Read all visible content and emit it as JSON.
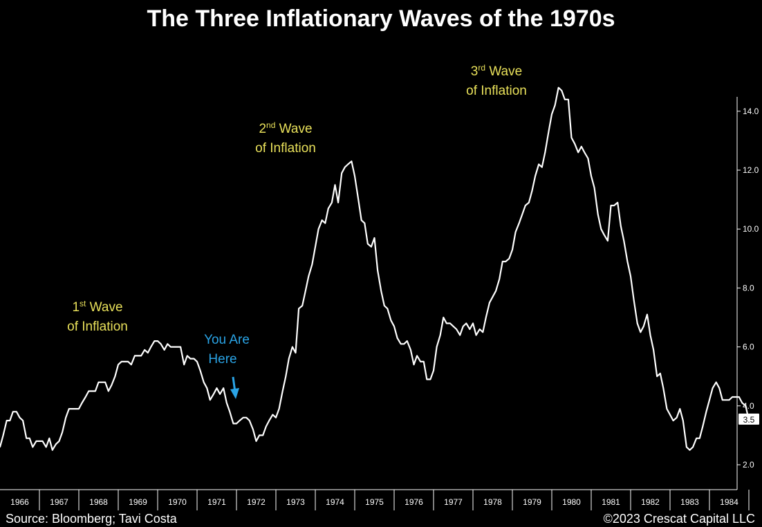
{
  "chart_data": {
    "type": "line",
    "title": "The Three Inflationary Waves of the 1970s",
    "source": "Source: Bloomberg; Tavi Costa",
    "copyright": "©2023 Crescat Capital LLC",
    "x_ticks": [
      "1966",
      "1967",
      "1968",
      "1969",
      "1970",
      "1971",
      "1972",
      "1973",
      "1974",
      "1975",
      "1976",
      "1977",
      "1978",
      "1979",
      "1980",
      "1981",
      "1982",
      "1983",
      "1984"
    ],
    "y_ticks": [
      "2.0",
      "4.0",
      "6.0",
      "8.0",
      "10.0",
      "12.0",
      "14.0"
    ],
    "ylim": [
      1.2,
      15.6
    ],
    "xlim": [
      1966.0,
      1985.05
    ],
    "last_value_label": "3.5",
    "colors": {
      "background": "#000000",
      "line": "#ffffff",
      "annotation": "#e8e05a",
      "highlight": "#2aa4e6",
      "text": "#ffffff"
    },
    "annotations": [
      {
        "id": "wave1",
        "lines": [
          "1st Wave",
          "of Inflation"
        ],
        "sup": "st",
        "base": "1"
      },
      {
        "id": "wave2",
        "lines": [
          "2nd Wave",
          "of Inflation"
        ],
        "sup": "nd",
        "base": "2"
      },
      {
        "id": "wave3",
        "lines": [
          "3rd Wave",
          "of Inflation"
        ],
        "sup": "rd",
        "base": "3"
      }
    ],
    "you_are_here": [
      "You Are",
      "Here"
    ],
    "series": [
      {
        "values": [
          [
            1966.0,
            2.6
          ],
          [
            1966.08,
            3.0
          ],
          [
            1966.17,
            3.5
          ],
          [
            1966.25,
            3.5
          ],
          [
            1966.33,
            3.8
          ],
          [
            1966.42,
            3.8
          ],
          [
            1966.5,
            3.6
          ],
          [
            1966.58,
            3.5
          ],
          [
            1966.67,
            2.9
          ],
          [
            1966.75,
            2.9
          ],
          [
            1966.83,
            2.6
          ],
          [
            1966.92,
            2.8
          ],
          [
            1967.0,
            2.8
          ],
          [
            1967.08,
            2.8
          ],
          [
            1967.17,
            2.6
          ],
          [
            1967.25,
            2.9
          ],
          [
            1967.33,
            2.5
          ],
          [
            1967.42,
            2.7
          ],
          [
            1967.5,
            2.8
          ],
          [
            1967.58,
            3.1
          ],
          [
            1967.67,
            3.6
          ],
          [
            1967.75,
            3.9
          ],
          [
            1967.83,
            3.9
          ],
          [
            1967.92,
            3.9
          ],
          [
            1968.0,
            3.9
          ],
          [
            1968.08,
            4.1
          ],
          [
            1968.17,
            4.3
          ],
          [
            1968.25,
            4.5
          ],
          [
            1968.33,
            4.5
          ],
          [
            1968.42,
            4.5
          ],
          [
            1968.5,
            4.8
          ],
          [
            1968.58,
            4.8
          ],
          [
            1968.67,
            4.8
          ],
          [
            1968.75,
            4.5
          ],
          [
            1968.83,
            4.7
          ],
          [
            1968.92,
            5.0
          ],
          [
            1969.0,
            5.4
          ],
          [
            1969.08,
            5.5
          ],
          [
            1969.17,
            5.5
          ],
          [
            1969.25,
            5.5
          ],
          [
            1969.33,
            5.4
          ],
          [
            1969.42,
            5.7
          ],
          [
            1969.5,
            5.7
          ],
          [
            1969.58,
            5.7
          ],
          [
            1969.67,
            5.9
          ],
          [
            1969.75,
            5.8
          ],
          [
            1969.83,
            6.0
          ],
          [
            1969.92,
            6.2
          ],
          [
            1970.0,
            6.2
          ],
          [
            1970.08,
            6.1
          ],
          [
            1970.17,
            5.9
          ],
          [
            1970.25,
            6.1
          ],
          [
            1970.33,
            6.0
          ],
          [
            1970.42,
            6.0
          ],
          [
            1970.5,
            6.0
          ],
          [
            1970.58,
            6.0
          ],
          [
            1970.67,
            5.4
          ],
          [
            1970.75,
            5.7
          ],
          [
            1970.83,
            5.6
          ],
          [
            1970.92,
            5.6
          ],
          [
            1971.0,
            5.5
          ],
          [
            1971.08,
            5.2
          ],
          [
            1971.17,
            4.8
          ],
          [
            1971.25,
            4.6
          ],
          [
            1971.33,
            4.2
          ],
          [
            1971.42,
            4.4
          ],
          [
            1971.5,
            4.6
          ],
          [
            1971.58,
            4.4
          ],
          [
            1971.67,
            4.6
          ],
          [
            1971.75,
            4.1
          ],
          [
            1971.83,
            3.8
          ],
          [
            1971.92,
            3.4
          ],
          [
            1972.0,
            3.4
          ],
          [
            1972.08,
            3.5
          ],
          [
            1972.17,
            3.6
          ],
          [
            1972.25,
            3.6
          ],
          [
            1972.33,
            3.5
          ],
          [
            1972.42,
            3.2
          ],
          [
            1972.5,
            2.8
          ],
          [
            1972.58,
            3.0
          ],
          [
            1972.67,
            3.0
          ],
          [
            1972.75,
            3.3
          ],
          [
            1972.83,
            3.5
          ],
          [
            1972.92,
            3.7
          ],
          [
            1973.0,
            3.6
          ],
          [
            1973.08,
            3.9
          ],
          [
            1973.17,
            4.5
          ],
          [
            1973.25,
            5.0
          ],
          [
            1973.33,
            5.6
          ],
          [
            1973.42,
            6.0
          ],
          [
            1973.5,
            5.8
          ],
          [
            1973.58,
            7.3
          ],
          [
            1973.67,
            7.4
          ],
          [
            1973.75,
            7.9
          ],
          [
            1973.83,
            8.4
          ],
          [
            1973.92,
            8.8
          ],
          [
            1974.0,
            9.4
          ],
          [
            1974.08,
            10.0
          ],
          [
            1974.17,
            10.3
          ],
          [
            1974.25,
            10.2
          ],
          [
            1974.33,
            10.7
          ],
          [
            1974.42,
            10.9
          ],
          [
            1974.5,
            11.5
          ],
          [
            1974.58,
            10.9
          ],
          [
            1974.67,
            11.9
          ],
          [
            1974.75,
            12.1
          ],
          [
            1974.83,
            12.2
          ],
          [
            1974.92,
            12.3
          ],
          [
            1975.0,
            11.8
          ],
          [
            1975.08,
            11.1
          ],
          [
            1975.17,
            10.3
          ],
          [
            1975.25,
            10.2
          ],
          [
            1975.33,
            9.5
          ],
          [
            1975.42,
            9.4
          ],
          [
            1975.5,
            9.7
          ],
          [
            1975.58,
            8.6
          ],
          [
            1975.67,
            7.9
          ],
          [
            1975.75,
            7.4
          ],
          [
            1975.83,
            7.3
          ],
          [
            1975.92,
            6.9
          ],
          [
            1976.0,
            6.7
          ],
          [
            1976.08,
            6.3
          ],
          [
            1976.17,
            6.1
          ],
          [
            1976.25,
            6.1
          ],
          [
            1976.33,
            6.2
          ],
          [
            1976.42,
            5.9
          ],
          [
            1976.5,
            5.4
          ],
          [
            1976.58,
            5.7
          ],
          [
            1976.67,
            5.5
          ],
          [
            1976.75,
            5.5
          ],
          [
            1976.83,
            4.9
          ],
          [
            1976.92,
            4.9
          ],
          [
            1977.0,
            5.2
          ],
          [
            1977.08,
            6.0
          ],
          [
            1977.17,
            6.4
          ],
          [
            1977.25,
            7.0
          ],
          [
            1977.33,
            6.8
          ],
          [
            1977.42,
            6.8
          ],
          [
            1977.5,
            6.7
          ],
          [
            1977.58,
            6.6
          ],
          [
            1977.67,
            6.4
          ],
          [
            1977.75,
            6.7
          ],
          [
            1977.83,
            6.8
          ],
          [
            1977.92,
            6.6
          ],
          [
            1978.0,
            6.8
          ],
          [
            1978.08,
            6.4
          ],
          [
            1978.17,
            6.6
          ],
          [
            1978.25,
            6.5
          ],
          [
            1978.33,
            7.0
          ],
          [
            1978.42,
            7.5
          ],
          [
            1978.5,
            7.7
          ],
          [
            1978.58,
            7.9
          ],
          [
            1978.67,
            8.3
          ],
          [
            1978.75,
            8.9
          ],
          [
            1978.83,
            8.9
          ],
          [
            1978.92,
            9.0
          ],
          [
            1979.0,
            9.3
          ],
          [
            1979.08,
            9.9
          ],
          [
            1979.17,
            10.2
          ],
          [
            1979.25,
            10.5
          ],
          [
            1979.33,
            10.8
          ],
          [
            1979.42,
            10.9
          ],
          [
            1979.5,
            11.3
          ],
          [
            1979.58,
            11.8
          ],
          [
            1979.67,
            12.2
          ],
          [
            1979.75,
            12.1
          ],
          [
            1979.83,
            12.6
          ],
          [
            1979.92,
            13.3
          ],
          [
            1980.0,
            13.9
          ],
          [
            1980.08,
            14.2
          ],
          [
            1980.17,
            14.8
          ],
          [
            1980.25,
            14.7
          ],
          [
            1980.33,
            14.4
          ],
          [
            1980.42,
            14.4
          ],
          [
            1980.5,
            13.1
          ],
          [
            1980.58,
            12.9
          ],
          [
            1980.67,
            12.6
          ],
          [
            1980.75,
            12.8
          ],
          [
            1980.83,
            12.6
          ],
          [
            1980.92,
            12.4
          ],
          [
            1981.0,
            11.8
          ],
          [
            1981.08,
            11.4
          ],
          [
            1981.17,
            10.5
          ],
          [
            1981.25,
            10.0
          ],
          [
            1981.33,
            9.8
          ],
          [
            1981.42,
            9.6
          ],
          [
            1981.5,
            10.8
          ],
          [
            1981.58,
            10.8
          ],
          [
            1981.67,
            10.9
          ],
          [
            1981.75,
            10.1
          ],
          [
            1981.83,
            9.6
          ],
          [
            1981.92,
            8.9
          ],
          [
            1982.0,
            8.4
          ],
          [
            1982.08,
            7.6
          ],
          [
            1982.17,
            6.8
          ],
          [
            1982.25,
            6.5
          ],
          [
            1982.33,
            6.7
          ],
          [
            1982.42,
            7.1
          ],
          [
            1982.5,
            6.4
          ],
          [
            1982.58,
            5.9
          ],
          [
            1982.67,
            5.0
          ],
          [
            1982.75,
            5.1
          ],
          [
            1982.83,
            4.6
          ],
          [
            1982.92,
            3.9
          ],
          [
            1983.0,
            3.7
          ],
          [
            1983.08,
            3.5
          ],
          [
            1983.17,
            3.6
          ],
          [
            1983.25,
            3.9
          ],
          [
            1983.33,
            3.5
          ],
          [
            1983.42,
            2.6
          ],
          [
            1983.5,
            2.5
          ],
          [
            1983.58,
            2.6
          ],
          [
            1983.67,
            2.9
          ],
          [
            1983.75,
            2.9
          ],
          [
            1983.83,
            3.3
          ],
          [
            1983.92,
            3.8
          ],
          [
            1984.0,
            4.2
          ],
          [
            1984.08,
            4.6
          ],
          [
            1984.17,
            4.8
          ],
          [
            1984.25,
            4.6
          ],
          [
            1984.33,
            4.2
          ],
          [
            1984.42,
            4.2
          ],
          [
            1984.5,
            4.2
          ],
          [
            1984.58,
            4.3
          ],
          [
            1984.67,
            4.3
          ],
          [
            1984.75,
            4.3
          ],
          [
            1984.83,
            4.1
          ],
          [
            1984.92,
            4.0
          ],
          [
            1985.0,
            3.5
          ]
        ]
      }
    ]
  }
}
